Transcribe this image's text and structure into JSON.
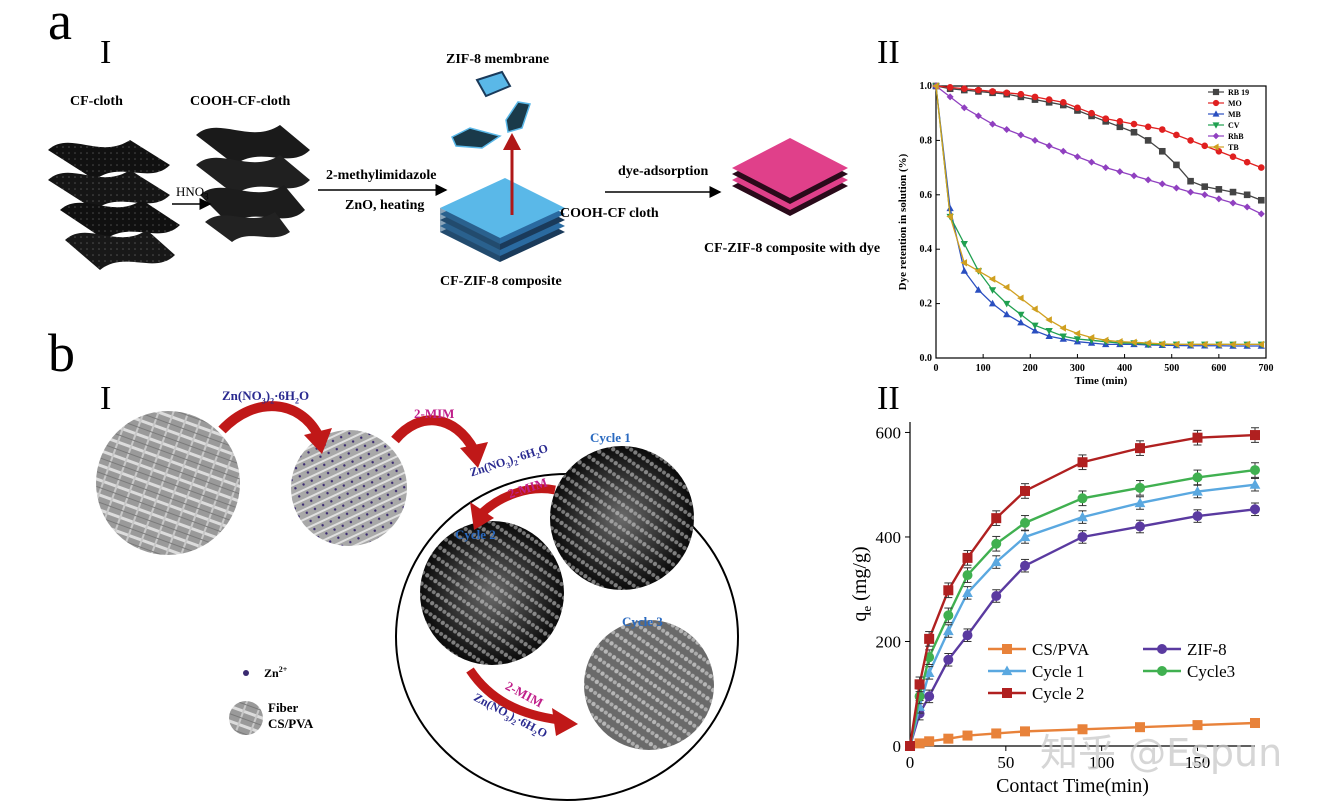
{
  "panel_a": {
    "letter": "a",
    "part1": {
      "roman": "I",
      "cf_cloth": "CF-cloth",
      "cooh_cf_cloth": "COOH-CF-cloth",
      "hno3": "HNO",
      "hno3_sub": "3",
      "zif8_membrane": "ZIF-8 membrane",
      "reagent1": "2-methylimidazole",
      "reagent2": "ZnO, heating",
      "cooh_cf_cloth_arrow": "COOH-CF cloth",
      "cf_zif8_composite": "CF-ZIF-8 composite",
      "dye_adsorption": "dye-adsorption",
      "composite_with_dye": "CF-ZIF-8 composite with dye"
    },
    "part2_roman": "II"
  },
  "panel_b": {
    "letter": "b",
    "part1": {
      "roman": "I",
      "reagent_zn": "Zn(NO",
      "reagent_zn_sub": "3",
      "reagent_zn_end": ")",
      "reagent_zn_sub2": "2",
      "reagent_zn_tail": "·6H",
      "reagent_zn_sub3": "2",
      "reagent_zn_o": "O",
      "reagent_mim": "2-MIM",
      "cycle1": "Cycle 1",
      "cycle2": "Cycle 2",
      "cycle3": "Cycle 3",
      "legend_zn": "Zn",
      "legend_zn_sup": "2+",
      "legend_fiber": "Fiber",
      "legend_cspva": "CS/PVA"
    },
    "part2_roman": "II"
  },
  "watermark": "知乎 @Espun",
  "chart_data": [
    {
      "type": "line",
      "xlabel": "Time (min)",
      "ylabel": "Dye retention in solution (%)",
      "xlim": [
        0,
        700
      ],
      "ylim": [
        0,
        1.0
      ],
      "xticks": [
        0,
        100,
        200,
        300,
        400,
        500,
        600,
        700
      ],
      "yticks": [
        0.0,
        0.2,
        0.4,
        0.6,
        0.8,
        1.0
      ],
      "legend_position": "top-right",
      "series": [
        {
          "name": "RB 19",
          "color": "#444444",
          "marker": "square",
          "x": [
            0,
            30,
            60,
            90,
            120,
            150,
            180,
            210,
            240,
            270,
            300,
            330,
            360,
            390,
            420,
            450,
            480,
            510,
            540,
            570,
            600,
            630,
            660,
            690
          ],
          "y": [
            1.0,
            0.99,
            0.985,
            0.98,
            0.975,
            0.97,
            0.96,
            0.95,
            0.94,
            0.93,
            0.91,
            0.89,
            0.87,
            0.85,
            0.83,
            0.8,
            0.76,
            0.71,
            0.65,
            0.63,
            0.62,
            0.61,
            0.6,
            0.58
          ]
        },
        {
          "name": "MO",
          "color": "#e02020",
          "marker": "circle",
          "x": [
            0,
            30,
            60,
            90,
            120,
            150,
            180,
            210,
            240,
            270,
            300,
            330,
            360,
            390,
            420,
            450,
            480,
            510,
            540,
            570,
            600,
            630,
            660,
            690
          ],
          "y": [
            1.0,
            0.995,
            0.99,
            0.985,
            0.98,
            0.975,
            0.97,
            0.96,
            0.95,
            0.94,
            0.92,
            0.9,
            0.88,
            0.87,
            0.86,
            0.85,
            0.84,
            0.82,
            0.8,
            0.78,
            0.76,
            0.74,
            0.72,
            0.7
          ]
        },
        {
          "name": "MB",
          "color": "#2a4fc0",
          "marker": "triangle-up",
          "x": [
            0,
            30,
            60,
            90,
            120,
            150,
            180,
            210,
            240,
            270,
            300,
            330,
            360,
            390,
            420,
            450,
            480,
            510,
            540,
            570,
            600,
            630,
            660,
            690
          ],
          "y": [
            1.0,
            0.55,
            0.32,
            0.25,
            0.2,
            0.16,
            0.13,
            0.1,
            0.08,
            0.07,
            0.06,
            0.055,
            0.05,
            0.05,
            0.05,
            0.048,
            0.047,
            0.046,
            0.045,
            0.045,
            0.045,
            0.044,
            0.044,
            0.044
          ]
        },
        {
          "name": "CV",
          "color": "#20a050",
          "marker": "triangle-down",
          "x": [
            0,
            30,
            60,
            90,
            120,
            150,
            180,
            210,
            240,
            270,
            300,
            330,
            360,
            390,
            420,
            450,
            480,
            510,
            540,
            570,
            600,
            630,
            660,
            690
          ],
          "y": [
            1.0,
            0.52,
            0.42,
            0.32,
            0.25,
            0.2,
            0.16,
            0.12,
            0.1,
            0.08,
            0.07,
            0.065,
            0.06,
            0.055,
            0.055,
            0.05,
            0.05,
            0.05,
            0.05,
            0.05,
            0.05,
            0.05,
            0.05,
            0.05
          ]
        },
        {
          "name": "RhB",
          "color": "#9040c0",
          "marker": "diamond",
          "x": [
            0,
            30,
            60,
            90,
            120,
            150,
            180,
            210,
            240,
            270,
            300,
            330,
            360,
            390,
            420,
            450,
            480,
            510,
            540,
            570,
            600,
            630,
            660,
            690
          ],
          "y": [
            1.0,
            0.96,
            0.92,
            0.89,
            0.86,
            0.84,
            0.82,
            0.8,
            0.78,
            0.76,
            0.74,
            0.72,
            0.7,
            0.685,
            0.67,
            0.655,
            0.64,
            0.625,
            0.61,
            0.6,
            0.585,
            0.57,
            0.555,
            0.53
          ]
        },
        {
          "name": "TB",
          "color": "#d0a020",
          "marker": "triangle-left",
          "x": [
            0,
            30,
            60,
            90,
            120,
            150,
            180,
            210,
            240,
            270,
            300,
            330,
            360,
            390,
            420,
            450,
            480,
            510,
            540,
            570,
            600,
            630,
            660,
            690
          ],
          "y": [
            1.0,
            0.52,
            0.35,
            0.32,
            0.29,
            0.26,
            0.22,
            0.18,
            0.14,
            0.11,
            0.09,
            0.075,
            0.065,
            0.06,
            0.058,
            0.055,
            0.052,
            0.05,
            0.05,
            0.05,
            0.05,
            0.05,
            0.05,
            0.05
          ]
        }
      ]
    },
    {
      "type": "line",
      "xlabel": "Contact Time(min)",
      "ylabel": "q",
      "ylabel_sub": "e",
      "ylabel_unit": " (mg/g)",
      "xlim": [
        0,
        180
      ],
      "ylim": [
        0,
        620
      ],
      "xticks": [
        0,
        50,
        100,
        150
      ],
      "yticks": [
        0,
        200,
        400,
        600
      ],
      "legend_position": "lower-right",
      "series": [
        {
          "name": "CS/PVA",
          "color": "#e8823a",
          "marker": "square",
          "x": [
            0,
            5,
            10,
            20,
            30,
            45,
            60,
            90,
            120,
            150,
            180
          ],
          "y": [
            0,
            5,
            9,
            14,
            20,
            24,
            28,
            32,
            36,
            40,
            44
          ],
          "err": 3
        },
        {
          "name": "ZIF-8",
          "color": "#5a3aa0",
          "marker": "circle",
          "x": [
            0,
            5,
            10,
            20,
            30,
            45,
            60,
            90,
            120,
            150,
            180
          ],
          "y": [
            0,
            62,
            95,
            165,
            212,
            287,
            345,
            400,
            420,
            440,
            453
          ],
          "err": 12
        },
        {
          "name": "Cycle 1",
          "color": "#5aa8e0",
          "marker": "triangle-up",
          "x": [
            0,
            5,
            10,
            20,
            30,
            45,
            60,
            90,
            120,
            150,
            180
          ],
          "y": [
            0,
            75,
            140,
            220,
            293,
            352,
            400,
            438,
            465,
            487,
            500
          ],
          "err": 12
        },
        {
          "name": "Cycle3",
          "color": "#40b050",
          "marker": "circle",
          "x": [
            0,
            5,
            10,
            20,
            30,
            45,
            60,
            90,
            120,
            150,
            180
          ],
          "y": [
            0,
            95,
            170,
            250,
            327,
            387,
            427,
            474,
            494,
            514,
            528
          ],
          "err": 14
        },
        {
          "name": "Cycle 2",
          "color": "#b02020",
          "marker": "square",
          "x": [
            0,
            5,
            10,
            20,
            30,
            45,
            60,
            90,
            120,
            150,
            180
          ],
          "y": [
            0,
            118,
            205,
            298,
            360,
            436,
            488,
            543,
            570,
            590,
            595
          ],
          "err": 14
        }
      ]
    }
  ]
}
